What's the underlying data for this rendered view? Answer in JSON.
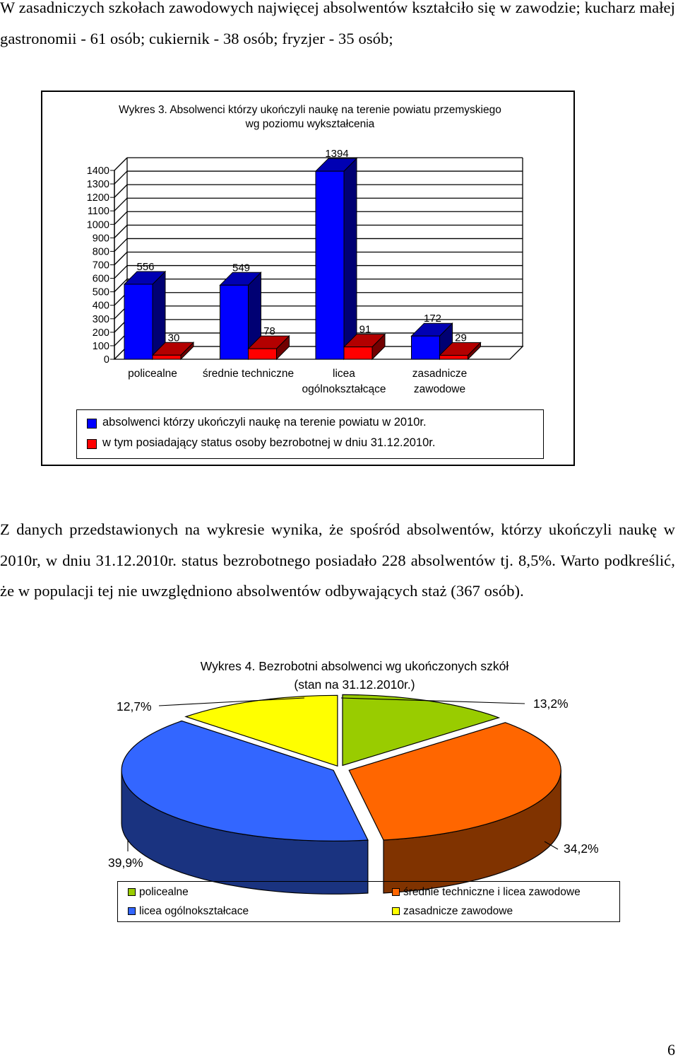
{
  "paragraph_top": "W zasadniczych szkołach zawodowych najwięcej absolwentów kształciło się w zawodzie; kucharz małej gastronomii - 61 osób; cukiernik - 38 osób; fryzjer - 35 osób;",
  "paragraph_middle": "Z danych przedstawionych na wykresie wynika, że spośród absolwentów, którzy ukończyli naukę w 2010r, w dniu 31.12.2010r. status bezrobotnego posiadało 228 absolwentów tj. 8,5%. Warto podkreślić, że w populacji tej nie uwzględniono absolwentów odbywających staż (367 osób).",
  "page_number": "6",
  "colors": {
    "series1": "#0000ff",
    "series2": "#ff0000",
    "pie_policealne": "#99cc00",
    "pie_srednie": "#ff6600",
    "pie_licea": "#3366ff",
    "pie_zasadnicze": "#ffff00"
  },
  "chart_data": [
    {
      "type": "bar",
      "title_line1": "Wykres 3. Absolwenci którzy ukończyli naukę na terenie powiatu przemyskiego",
      "title_line2": "wg poziomu wykształcenia",
      "categories": [
        "policealne",
        "średnie techniczne",
        "licea ogólnokształcące",
        "zasadnicze zawodowe"
      ],
      "category_lines": [
        [
          "policealne"
        ],
        [
          "średnie techniczne"
        ],
        [
          "licea",
          "ogólnokształcące"
        ],
        [
          "zasadnicze",
          "zawodowe"
        ]
      ],
      "series": [
        {
          "name": "absolwenci którzy ukończyli naukę na terenie powiatu w 2010r.",
          "values": [
            556,
            549,
            1394,
            172
          ]
        },
        {
          "name": "w tym posiadający status osoby bezrobotnej w dniu 31.12.2010r.",
          "values": [
            30,
            78,
            91,
            29
          ]
        }
      ],
      "yticks": [
        "0",
        "100",
        "200",
        "300",
        "400",
        "500",
        "600",
        "700",
        "800",
        "900",
        "1000",
        "1100",
        "1200",
        "1300",
        "1400"
      ],
      "ylim": [
        0,
        1400
      ],
      "grid": true,
      "three_d": true,
      "legend_position": "bottom"
    },
    {
      "type": "pie",
      "title_line1": "Wykres 4. Bezrobotni absolwenci wg ukończonych szkół",
      "title_line2": "(stan na 31.12.2010r.)",
      "categories": [
        "policealne",
        "średnie techniczne i licea zawodowe",
        "licea ogólnokształcace",
        "zasadnicze zawodowe"
      ],
      "values": [
        13.2,
        34.2,
        39.9,
        12.7
      ],
      "labels": [
        "13,2%",
        "34,2%",
        "39,9%",
        "12,7%"
      ],
      "three_d": true,
      "legend_position": "bottom"
    }
  ]
}
